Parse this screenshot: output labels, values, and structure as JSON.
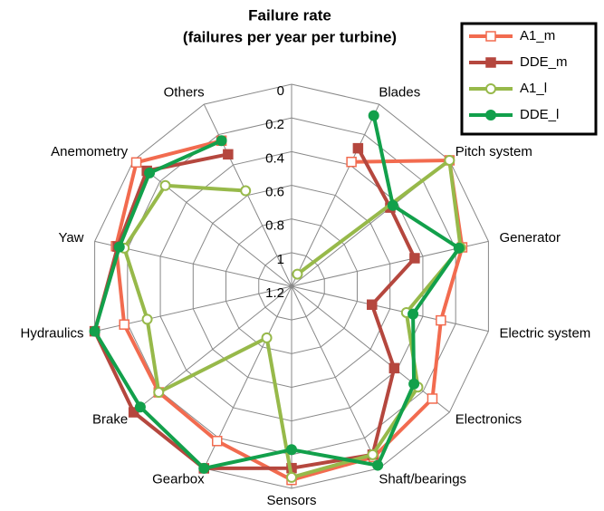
{
  "chart_data": {
    "type": "radar",
    "title": [
      "Failure rate",
      "(failures per year per turbine)"
    ],
    "categories": [
      null,
      "Blades",
      "Pitch system",
      "Generator",
      "Electric system",
      "Electronics",
      "Shaft/bearings",
      "Sensors",
      "Gearbox",
      "Brake",
      "Hydraulics",
      "Yaw",
      "Anemometry",
      "Others"
    ],
    "rlim": [
      1.2,
      0
    ],
    "rticks": [
      0,
      0.2,
      0.4,
      0.6,
      0.8,
      1,
      1.2
    ],
    "grid": true,
    "legend": "top-right",
    "series": [
      {
        "name": "A1_m",
        "color": "#f26b4f",
        "marker": "square-open",
        "values": [
          null,
          0.38,
          0,
          0.16,
          0.29,
          0.13,
          0.075,
          0.05,
          0.18,
          0.19,
          0.18,
          0.13,
          0.02,
          0.24
        ]
      },
      {
        "name": "DDE_m",
        "color": "#b5473e",
        "marker": "square",
        "values": [
          null,
          0.29,
          0.45,
          0.45,
          0.71,
          0.42,
          0.09,
          0.12,
          0,
          0,
          0,
          0.14,
          0.1,
          0.33
        ]
      },
      {
        "name": "A1_l",
        "color": "#97b94a",
        "marker": "circle-open",
        "values": [
          null,
          1.12,
          0,
          0.17,
          0.5,
          0.24,
          0.09,
          0.065,
          0.86,
          0.19,
          0.32,
          0.18,
          0.24,
          0.57
        ]
      },
      {
        "name": "DDE_l",
        "color": "#12a04b",
        "marker": "circle",
        "values": [
          null,
          0.075,
          0.43,
          0.18,
          0.46,
          0.27,
          0.02,
          0.23,
          0,
          0.05,
          0,
          0.15,
          0.12,
          0.24
        ]
      }
    ]
  }
}
